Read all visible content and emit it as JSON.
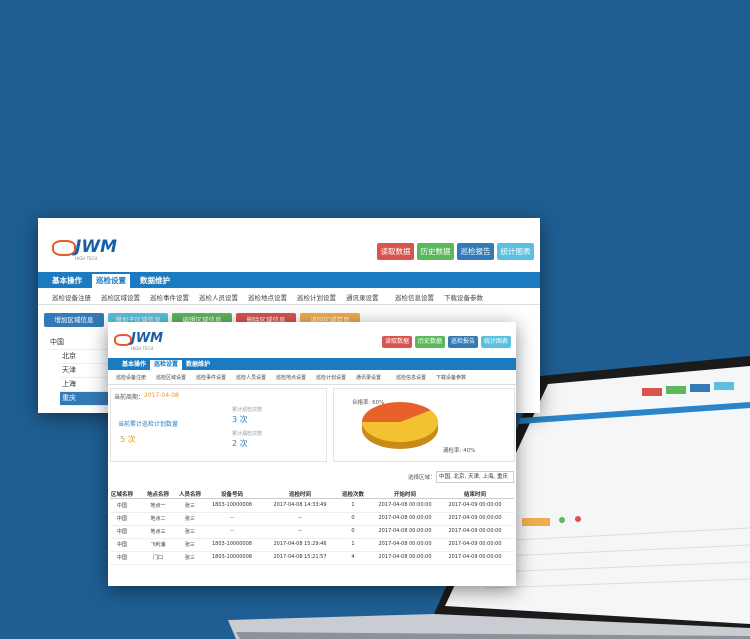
{
  "back_window": {
    "logo": "JWM",
    "logo_sub": "HIGH TECH",
    "buttons": [
      "读取数据",
      "历史数据",
      "巡检报告",
      "统计图表"
    ],
    "nav": [
      "基本操作",
      "巡检设置",
      "数据维护"
    ],
    "subnav": [
      "巡检设备注册",
      "巡检区域设置",
      "巡检事件设置",
      "巡检人员设置",
      "巡检地点设置",
      "巡检计划设置",
      "通讯录设置",
      "巡检信息设置",
      "下载设备参数"
    ],
    "toolbar": [
      "增加区域信息",
      "增加子区域信息",
      "编辑区域信息",
      "删除区域信息",
      "返回区域首页"
    ],
    "tree": [
      "中国",
      "北京",
      "天津",
      "上海",
      "重庆"
    ]
  },
  "front_window": {
    "logo": "JWM",
    "logo_sub": "HIGH TECH",
    "buttons": [
      "读取数据",
      "历史数据",
      "巡检报告",
      "统计图表"
    ],
    "nav": [
      "基本操作",
      "巡检设置",
      "数据维护"
    ],
    "subnav": [
      "巡检设备注册",
      "巡检区域设置",
      "巡检事件设置",
      "巡检人员设置",
      "巡检地点设置",
      "巡检计划设置",
      "通讯录设置",
      "巡检信息设置",
      "下载设备参数"
    ],
    "period_label": "当前周期：",
    "period": "2017-04-08",
    "plan_label": "当前累计巡检计划数量",
    "plan_count": "5 次",
    "checked_label": "累计巡检次数",
    "checked_count": "3 次",
    "missed_label": "累计漏检次数",
    "missed_count": "2 次",
    "pie": {
      "values": [
        60,
        40
      ],
      "labels": [
        "合格率: 60%",
        "漏检率: 40%"
      ],
      "colors": [
        "#f2c230",
        "#e8602a"
      ]
    },
    "region_label": "选择区域：",
    "region": "中国, 北京, 天津, 上海, 重庆",
    "table": {
      "headers": [
        "区域名称",
        "地点名称",
        "人员名称",
        "设备号码",
        "巡检时间",
        "巡检次数",
        "开始时间",
        "结束时间"
      ],
      "rows": [
        [
          "中国",
          "地点一",
          "张三",
          "1803-10000008",
          "2017-04-08 14:33:49",
          "1",
          "2017-04-08 00:00:00",
          "2017-04-09 00:00:00"
        ],
        [
          "中国",
          "地点二",
          "张三",
          "--",
          "--",
          "0",
          "2017-04-08 00:00:00",
          "2017-04-09 00:00:00"
        ],
        [
          "中国",
          "地点三",
          "张三",
          "--",
          "--",
          "0",
          "2017-04-08 00:00:00",
          "2017-04-09 00:00:00"
        ],
        [
          "中国",
          "飞利浦",
          "张三",
          "1803-10000008",
          "2017-04-08 15:29:46",
          "1",
          "2017-04-08 00:00:00",
          "2017-04-09 00:00:00"
        ],
        [
          "中国",
          "门口",
          "张三",
          "1803-10000008",
          "2017-04-08 15:21:57",
          "4",
          "2017-04-08 00:00:00",
          "2017-04-09 00:00:00"
        ]
      ]
    }
  }
}
